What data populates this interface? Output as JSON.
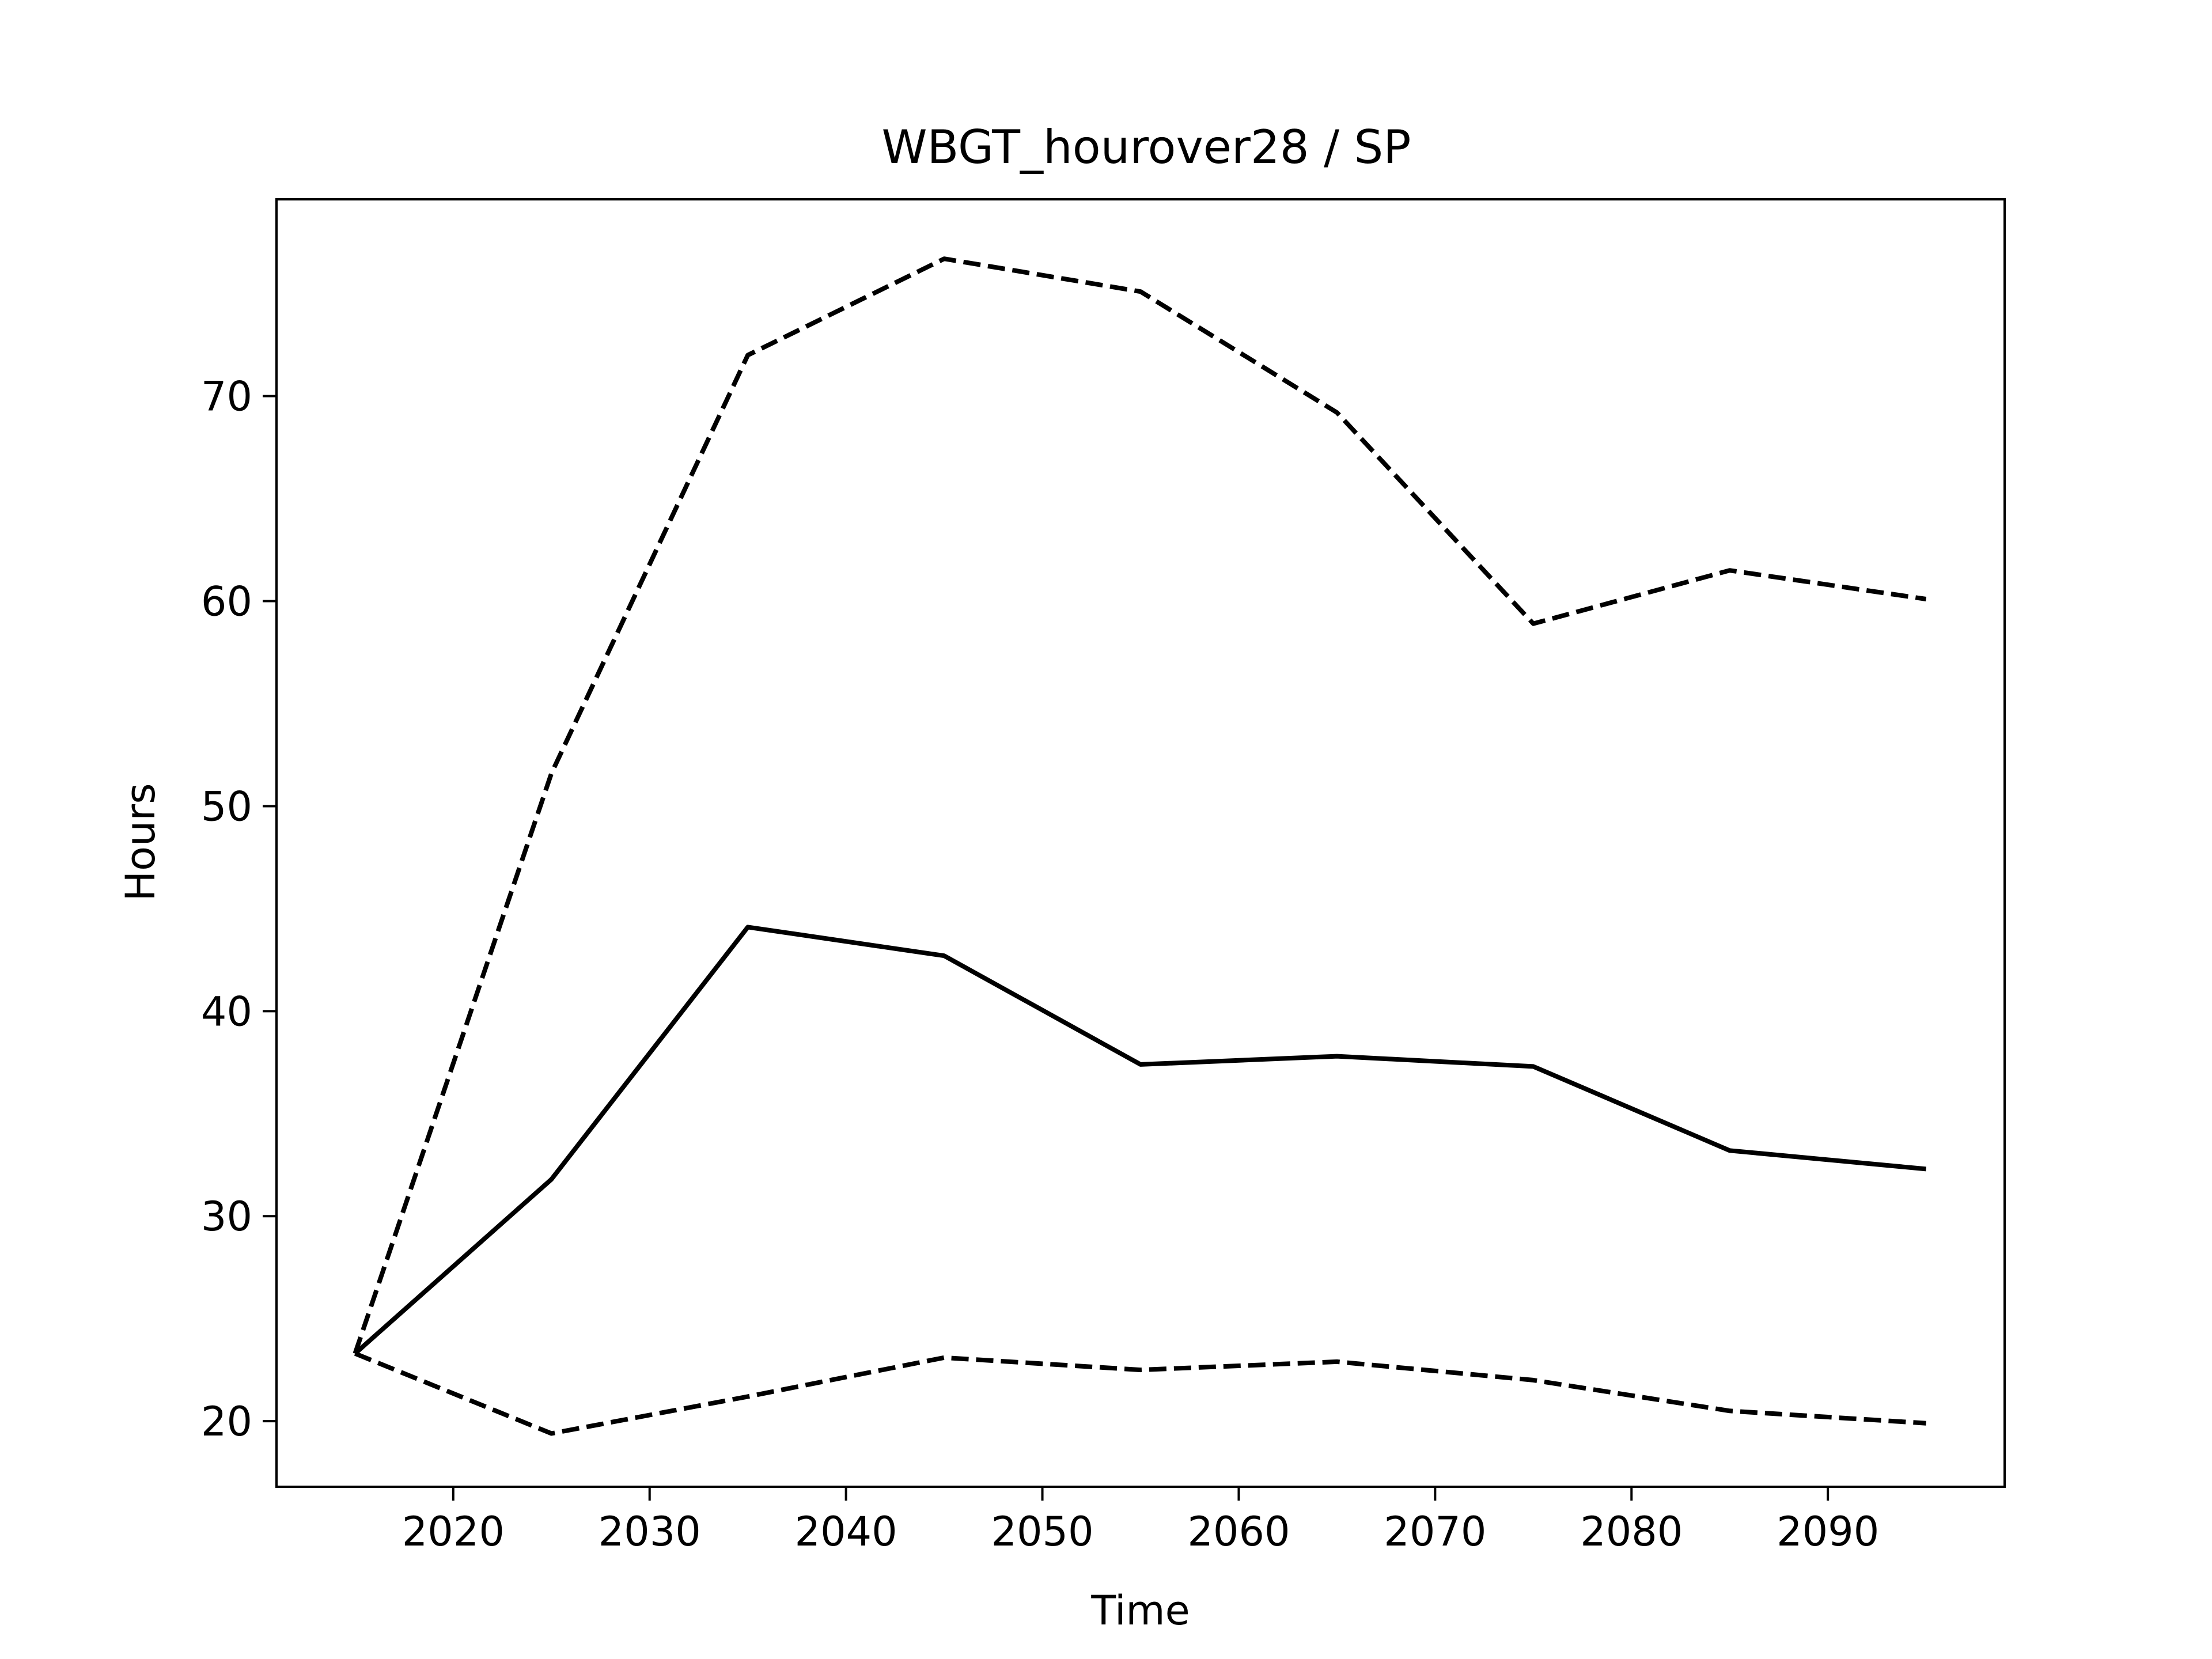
{
  "chart_data": {
    "type": "line",
    "title": "WBGT_hourover28 / SP",
    "xlabel": "Time",
    "ylabel": "Hours",
    "xlim": [
      2011,
      2099
    ],
    "ylim": [
      16.8,
      79.6
    ],
    "xticks": [
      2020,
      2030,
      2040,
      2050,
      2060,
      2070,
      2080,
      2090
    ],
    "yticks": [
      20,
      30,
      40,
      50,
      60,
      70
    ],
    "grid": false,
    "x": [
      2015,
      2025,
      2035,
      2045,
      2055,
      2065,
      2075,
      2085,
      2095
    ],
    "series": [
      {
        "style": "solid",
        "values": [
          23.3,
          31.8,
          44.1,
          42.7,
          37.4,
          37.8,
          37.3,
          33.2,
          32.3
        ]
      },
      {
        "style": "dashed",
        "values": [
          23.3,
          51.6,
          72.0,
          76.7,
          75.1,
          69.2,
          58.9,
          61.5,
          60.1
        ]
      },
      {
        "style": "dashed",
        "values": [
          23.3,
          19.4,
          21.2,
          23.1,
          22.5,
          22.9,
          22.0,
          20.5,
          19.9
        ]
      }
    ],
    "line_color": "#000000"
  }
}
